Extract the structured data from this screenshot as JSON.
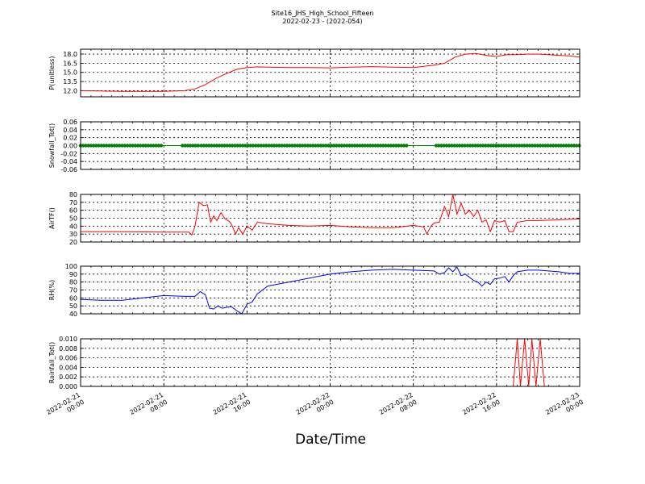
{
  "title": "Site16_JHS_High_School_Fifteen",
  "subtitle": "2022-02-23 - (2022-054)",
  "xlabel": "Date/Time",
  "colors": {
    "red": "#ff0000",
    "green": "#008000",
    "blue": "#0000ff"
  },
  "chart_data": [
    {
      "type": "line",
      "ylabel": "P(unitless)",
      "ylim": [
        11.0,
        18.8
      ],
      "yticks": [
        "12.0",
        "13.5",
        "15.0",
        "16.5",
        "18.0"
      ],
      "grid": true,
      "series": [
        {
          "color": "#ff0000",
          "points": [
            [
              0,
              12.0
            ],
            [
              2,
              11.95
            ],
            [
              4,
              11.9
            ],
            [
              6,
              11.9
            ],
            [
              8,
              11.9
            ],
            [
              9,
              11.95
            ],
            [
              10,
              12.0
            ],
            [
              11,
              12.3
            ],
            [
              12,
              13.0
            ],
            [
              13,
              14.0
            ],
            [
              14,
              14.8
            ],
            [
              15,
              15.5
            ],
            [
              16,
              15.8
            ],
            [
              17,
              15.9
            ],
            [
              18,
              15.85
            ],
            [
              20,
              15.8
            ],
            [
              22,
              15.8
            ],
            [
              24,
              15.75
            ],
            [
              26,
              15.85
            ],
            [
              28,
              15.95
            ],
            [
              30,
              15.85
            ],
            [
              32,
              15.8
            ],
            [
              33,
              16.0
            ],
            [
              34,
              16.2
            ],
            [
              35,
              16.5
            ],
            [
              36,
              17.5
            ],
            [
              37,
              18.0
            ],
            [
              38,
              18.1
            ],
            [
              39,
              17.8
            ],
            [
              40,
              17.6
            ],
            [
              41,
              17.9
            ],
            [
              42,
              17.9
            ],
            [
              43,
              18.0
            ],
            [
              44,
              18.0
            ],
            [
              45,
              17.9
            ],
            [
              46,
              17.8
            ],
            [
              47,
              17.7
            ],
            [
              48,
              17.5
            ]
          ]
        }
      ]
    },
    {
      "type": "scatter",
      "ylabel": "Snowfall_Tot()",
      "ylim": [
        -0.06,
        0.06
      ],
      "yticks": [
        "-0.06",
        "-0.04",
        "-0.02",
        "0.00",
        "0.02",
        "0.04",
        "0.06"
      ],
      "grid": true,
      "series": [
        {
          "color": "#008000",
          "segments": [
            [
              0,
              7.9
            ],
            [
              9.8,
              11.3
            ],
            [
              11.6,
              31.5
            ],
            [
              34.2,
              48
            ]
          ],
          "value": 0.0
        }
      ]
    },
    {
      "type": "line",
      "ylabel": "AirTF()",
      "ylim": [
        20,
        80
      ],
      "yticks": [
        "20",
        "30",
        "40",
        "50",
        "60",
        "70",
        "80"
      ],
      "grid": true,
      "series": [
        {
          "color": "#ff0000",
          "points": [
            [
              0,
              33
            ],
            [
              4,
              33
            ],
            [
              8,
              32.5
            ],
            [
              10.4,
              32.5
            ],
            [
              10.7,
              29
            ],
            [
              11,
              40
            ],
            [
              11.4,
              70
            ],
            [
              11.8,
              66
            ],
            [
              12.2,
              67
            ],
            [
              12.5,
              45
            ],
            [
              12.8,
              53
            ],
            [
              13.1,
              47
            ],
            [
              13.5,
              57
            ],
            [
              13.9,
              49
            ],
            [
              14.3,
              46
            ],
            [
              14.6,
              40
            ],
            [
              14.9,
              30
            ],
            [
              15.2,
              38
            ],
            [
              15.6,
              30
            ],
            [
              16,
              40
            ],
            [
              16.5,
              35
            ],
            [
              17,
              45
            ],
            [
              18,
              43
            ],
            [
              20,
              41
            ],
            [
              22,
              40
            ],
            [
              24,
              41
            ],
            [
              26,
              39
            ],
            [
              28,
              38
            ],
            [
              30,
              38
            ],
            [
              32,
              41
            ],
            [
              33,
              39
            ],
            [
              33.3,
              30
            ],
            [
              33.7,
              40
            ],
            [
              34,
              44
            ],
            [
              34.5,
              45
            ],
            [
              35,
              65
            ],
            [
              35.4,
              52
            ],
            [
              35.8,
              80
            ],
            [
              36.2,
              55
            ],
            [
              36.6,
              69
            ],
            [
              37,
              55
            ],
            [
              37.4,
              60
            ],
            [
              37.8,
              52
            ],
            [
              38.2,
              60
            ],
            [
              38.6,
              45
            ],
            [
              39,
              48
            ],
            [
              39.4,
              33
            ],
            [
              39.8,
              47
            ],
            [
              40.3,
              45
            ],
            [
              40.8,
              47
            ],
            [
              41.2,
              33
            ],
            [
              41.6,
              33
            ],
            [
              42,
              45
            ],
            [
              43,
              47
            ],
            [
              44,
              47
            ],
            [
              46,
              48
            ],
            [
              48,
              49
            ]
          ]
        }
      ]
    },
    {
      "type": "line",
      "ylabel": "RH(%)",
      "ylim": [
        40,
        100
      ],
      "yticks": [
        "40",
        "50",
        "60",
        "70",
        "80",
        "90",
        "100"
      ],
      "grid": true,
      "series": [
        {
          "color": "#0000ff",
          "points": [
            [
              0,
              58
            ],
            [
              2,
              57
            ],
            [
              4,
              57
            ],
            [
              6,
              60
            ],
            [
              8,
              63
            ],
            [
              10,
              62
            ],
            [
              11,
              62
            ],
            [
              11.5,
              68
            ],
            [
              12,
              64
            ],
            [
              12.4,
              47
            ],
            [
              12.8,
              46
            ],
            [
              13.2,
              50
            ],
            [
              13.6,
              47
            ],
            [
              14,
              48
            ],
            [
              14.5,
              49
            ],
            [
              15,
              44
            ],
            [
              15.5,
              40
            ],
            [
              16,
              52
            ],
            [
              16.5,
              55
            ],
            [
              17,
              65
            ],
            [
              18,
              75
            ],
            [
              20,
              80
            ],
            [
              22,
              85
            ],
            [
              24,
              90
            ],
            [
              26,
              93
            ],
            [
              28,
              95
            ],
            [
              30,
              96
            ],
            [
              32,
              95
            ],
            [
              34,
              94
            ],
            [
              34.5,
              90
            ],
            [
              35,
              92
            ],
            [
              35.4,
              98
            ],
            [
              35.8,
              93
            ],
            [
              36.2,
              99
            ],
            [
              36.6,
              88
            ],
            [
              37,
              90
            ],
            [
              37.4,
              86
            ],
            [
              37.8,
              82
            ],
            [
              38.2,
              80
            ],
            [
              38.6,
              75
            ],
            [
              39,
              80
            ],
            [
              39.4,
              77
            ],
            [
              39.8,
              84
            ],
            [
              40.3,
              85
            ],
            [
              40.8,
              87
            ],
            [
              41.2,
              80
            ],
            [
              41.6,
              88
            ],
            [
              42,
              93
            ],
            [
              43,
              95
            ],
            [
              44,
              95
            ],
            [
              45,
              94
            ],
            [
              46,
              93
            ],
            [
              47,
              91
            ],
            [
              48,
              91
            ]
          ]
        }
      ]
    },
    {
      "type": "line",
      "ylabel": "Rainfall_Tot()",
      "ylim": [
        0,
        0.01
      ],
      "yticks": [
        "0.000",
        "0.002",
        "0.004",
        "0.006",
        "0.008",
        "0.010"
      ],
      "xticks": [
        "2022-02-21\n00:00",
        "2022-02-21\n08:00",
        "2022-02-21\n16:00",
        "2022-02-22\n00:00",
        "2022-02-22\n08:00",
        "2022-02-22\n16:00",
        "2022-02-23\n00:00"
      ],
      "grid": true,
      "series": [
        {
          "color": "#ff0000",
          "points": [
            [
              0,
              0
            ],
            [
              41.6,
              0
            ],
            [
              42,
              0.01
            ],
            [
              42.3,
              0
            ],
            [
              42.7,
              0.01
            ],
            [
              43.1,
              0
            ],
            [
              43.4,
              0.01
            ],
            [
              43.8,
              0
            ],
            [
              44.2,
              0.01
            ],
            [
              44.6,
              0
            ],
            [
              48,
              0
            ]
          ]
        }
      ]
    }
  ]
}
